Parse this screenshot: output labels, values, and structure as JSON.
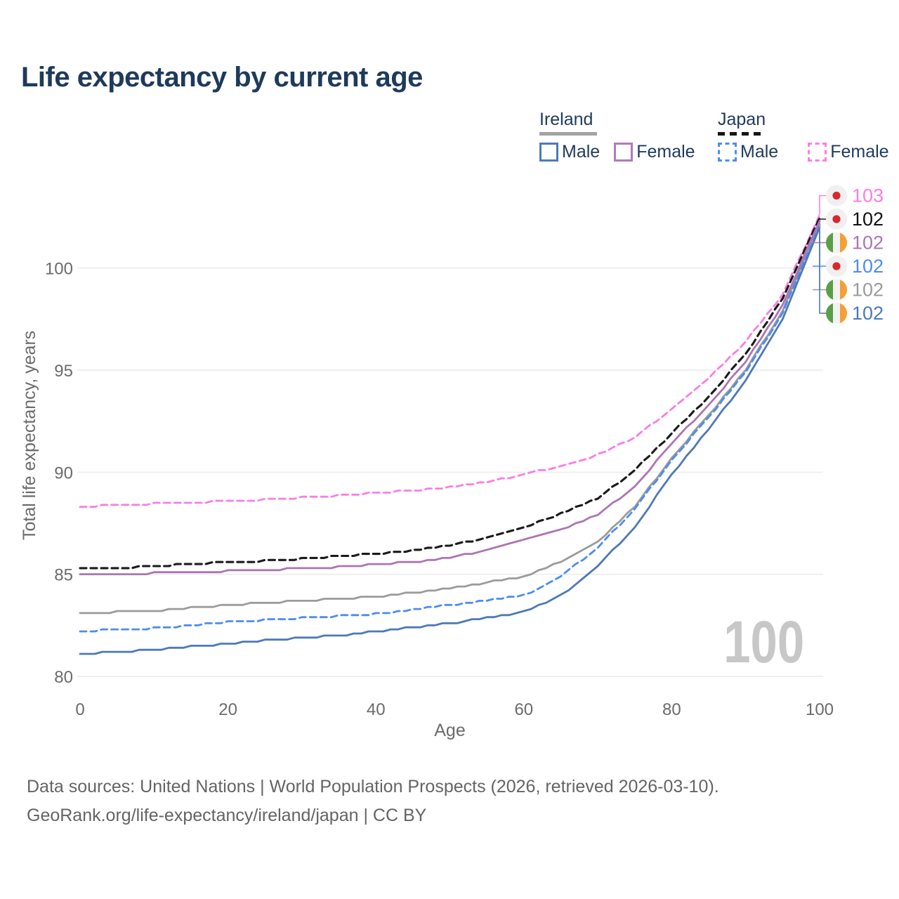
{
  "title": "Life expectancy by current age",
  "legend": {
    "groups": [
      {
        "name": "Ireland",
        "line_style": "solid",
        "underline_color": "#a3a3a3",
        "items": [
          {
            "label": "Male",
            "color": "#4d79b8"
          },
          {
            "label": "Female",
            "color": "#b279ba"
          }
        ]
      },
      {
        "name": "Japan",
        "line_style": "dashed",
        "underline_color": "#161616",
        "items": [
          {
            "label": "Male",
            "color": "#4d8cf0"
          },
          {
            "label": "Female",
            "color": "#fb7de4"
          }
        ]
      }
    ]
  },
  "chart_data": {
    "type": "line",
    "title": "Life expectancy by current age",
    "xlabel": "Age",
    "ylabel": "Total life expectancy, years",
    "xlim": [
      0,
      100
    ],
    "ylim": [
      80,
      100
    ],
    "x_ticks": [
      0,
      20,
      40,
      60,
      80,
      100
    ],
    "y_ticks": [
      80,
      85,
      90,
      95,
      100
    ],
    "grid": "horizontal",
    "legend_position": "top-right",
    "x": [
      0,
      5,
      10,
      15,
      20,
      25,
      30,
      35,
      40,
      45,
      50,
      55,
      60,
      65,
      70,
      75,
      80,
      85,
      90,
      95,
      100
    ],
    "series": [
      {
        "name": "Japan Female",
        "country": "Japan",
        "sex": "Female",
        "flag": "jp",
        "color": "#fb7de4",
        "dash": true,
        "end_label": "103",
        "values": [
          88.3,
          88.4,
          88.45,
          88.5,
          88.6,
          88.65,
          88.75,
          88.85,
          89.0,
          89.1,
          89.25,
          89.5,
          89.9,
          90.3,
          90.85,
          91.7,
          93.1,
          94.6,
          96.4,
          98.7,
          102.6
        ]
      },
      {
        "name": "Japan Total",
        "country": "Japan",
        "sex": "Both",
        "flag": "jp",
        "color": "#1a1a1a",
        "dash": true,
        "end_label": "102",
        "values": [
          85.25,
          85.3,
          85.4,
          85.5,
          85.6,
          85.65,
          85.75,
          85.9,
          86.0,
          86.15,
          86.4,
          86.8,
          87.3,
          87.95,
          88.7,
          90.1,
          91.9,
          93.7,
          95.8,
          98.5,
          102.45
        ]
      },
      {
        "name": "Ireland Female",
        "country": "Ireland",
        "sex": "Female",
        "flag": "ie",
        "color": "#ad74b4",
        "dash": false,
        "end_label": "102",
        "values": [
          84.95,
          85.0,
          85.05,
          85.1,
          85.15,
          85.2,
          85.3,
          85.35,
          85.5,
          85.6,
          85.8,
          86.2,
          86.7,
          87.2,
          87.9,
          89.3,
          91.4,
          93.3,
          95.4,
          98.2,
          102.3
        ]
      },
      {
        "name": "Japan Male",
        "country": "Japan",
        "sex": "Male",
        "flag": "jp",
        "color": "#4d8cf0",
        "dash": true,
        "end_label": "102",
        "values": [
          82.2,
          82.3,
          82.35,
          82.5,
          82.65,
          82.75,
          82.85,
          82.95,
          83.05,
          83.25,
          83.5,
          83.7,
          83.95,
          84.9,
          86.3,
          88.2,
          90.6,
          92.7,
          94.9,
          97.8,
          102.1
        ]
      },
      {
        "name": "Ireland Total",
        "country": "Ireland",
        "sex": "Both",
        "flag": "ie",
        "color": "#9b9b9b",
        "dash": false,
        "end_label": "102",
        "values": [
          83.05,
          83.15,
          83.2,
          83.35,
          83.5,
          83.6,
          83.7,
          83.8,
          83.9,
          84.1,
          84.3,
          84.6,
          84.9,
          85.6,
          86.6,
          88.3,
          90.7,
          92.8,
          95.0,
          97.9,
          102.15
        ]
      },
      {
        "name": "Ireland Male",
        "country": "Ireland",
        "sex": "Male",
        "flag": "ie",
        "color": "#4d79b8",
        "dash": false,
        "end_label": "102",
        "values": [
          81.1,
          81.2,
          81.3,
          81.45,
          81.6,
          81.75,
          81.9,
          82.0,
          82.2,
          82.4,
          82.6,
          82.85,
          83.15,
          83.95,
          85.4,
          87.3,
          89.9,
          92.1,
          94.5,
          97.5,
          102.0
        ]
      }
    ]
  },
  "watermark": "100",
  "footer": {
    "line1": "Data sources: United Nations | World Population Prospects (2026, retrieved 2026-03-10).",
    "line2": "GeoRank.org/life-expectancy/ireland/japan | CC BY"
  },
  "colors": {
    "title_text": "#1e3a5c",
    "axis_text": "#6b6b6b",
    "gridline": "#ececec",
    "watermark": "#c7c7c7",
    "flag_jp_bg": "#f0f0f0",
    "flag_jp_dot": "#d7282f",
    "flag_ie_green": "#5a9e45",
    "flag_ie_white": "#f2f2f2",
    "flag_ie_orange": "#f59f37"
  }
}
